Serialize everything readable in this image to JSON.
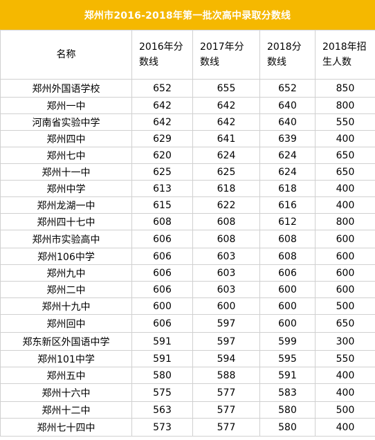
{
  "title": "郑州市2016-2018年第一批次高中录取分数线",
  "colors": {
    "title_bg": "#f5b800",
    "title_text": "#ffffff",
    "grid": "#d0d0d0"
  },
  "headers": [
    "名称",
    "2016年分数线",
    "2017年分数线",
    "2018分数线",
    "2018年招生人数"
  ],
  "rows": [
    [
      "郑州外国语学校",
      "652",
      "655",
      "652",
      "850"
    ],
    [
      "郑州一中",
      "642",
      "642",
      "640",
      "800"
    ],
    [
      "河南省实验中学",
      "642",
      "642",
      "640",
      "550"
    ],
    [
      "郑州四中",
      "629",
      "641",
      "639",
      "400"
    ],
    [
      "郑州七中",
      "620",
      "624",
      "624",
      "650"
    ],
    [
      "郑州十一中",
      "625",
      "625",
      "624",
      "650"
    ],
    [
      "郑州中学",
      "613",
      "618",
      "618",
      "400"
    ],
    [
      "郑州龙湖一中",
      "615",
      "622",
      "616",
      "400"
    ],
    [
      "郑州四十七中",
      "608",
      "608",
      "612",
      "800"
    ],
    [
      "郑州市实验高中",
      "606",
      "608",
      "608",
      "600"
    ],
    [
      "郑州106中学",
      "606",
      "603",
      "608",
      "600"
    ],
    [
      "郑州九中",
      "606",
      "603",
      "606",
      "600"
    ],
    [
      "郑州二中",
      "606",
      "603",
      "600",
      "600"
    ],
    [
      "郑州十九中",
      "600",
      "600",
      "600",
      "500"
    ],
    [
      "郑州回中",
      "606",
      "597",
      "600",
      "650"
    ],
    [
      "郑东新区外国语中学",
      "591",
      "597",
      "599",
      "300"
    ],
    [
      "郑州101中学",
      "591",
      "594",
      "595",
      "550"
    ],
    [
      "郑州五中",
      "580",
      "588",
      "591",
      "400"
    ],
    [
      "郑州十六中",
      "575",
      "577",
      "583",
      "400"
    ],
    [
      "郑州十二中",
      "563",
      "577",
      "580",
      "500"
    ],
    [
      "郑州七十四中",
      "573",
      "577",
      "580",
      "400"
    ]
  ]
}
